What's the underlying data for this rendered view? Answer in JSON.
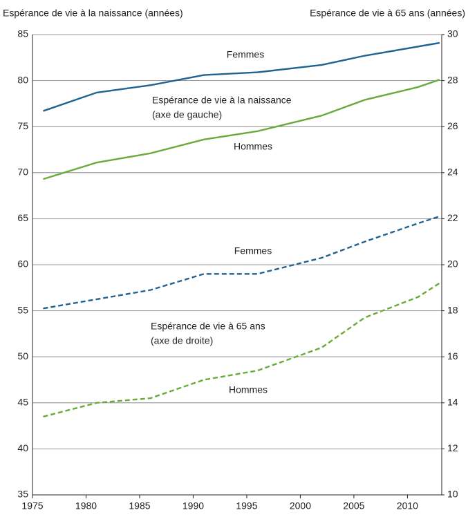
{
  "chart_data": {
    "type": "line",
    "y_label": "Espérance de vie à la naissance (années)",
    "y2_label": "Espérance de vie à 65 ans (années)",
    "xlim": [
      1975,
      2013.2
    ],
    "xticks": [
      1975,
      1980,
      1985,
      1990,
      1995,
      2000,
      2005,
      2010
    ],
    "ylim": [
      35,
      85
    ],
    "yticks": [
      35,
      40,
      45,
      50,
      55,
      60,
      65,
      70,
      75,
      80,
      85
    ],
    "y2lim": [
      10,
      30
    ],
    "y2ticks": [
      10,
      12,
      14,
      16,
      18,
      20,
      22,
      24,
      26,
      28,
      30
    ],
    "grid": true,
    "series": [
      {
        "name": "Femmes",
        "color": "#1f6391",
        "dashed": false,
        "x": [
          1976,
          1981,
          1986,
          1991,
          1996,
          2002,
          2006,
          2013
        ],
        "values": [
          76.7,
          78.7,
          79.5,
          80.6,
          80.9,
          81.7,
          82.7,
          84.1
        ]
      },
      {
        "name": "Hommes",
        "color": "#6aaa3a",
        "dashed": false,
        "x": [
          1976,
          1981,
          1986,
          1991,
          1996,
          2002,
          2006,
          2011,
          2013
        ],
        "values": [
          69.3,
          71.1,
          72.1,
          73.6,
          74.5,
          76.2,
          77.9,
          79.3,
          80.1
        ]
      },
      {
        "name": "Femmes",
        "color": "#1f6391",
        "dashed": true,
        "axis": "y2",
        "x": [
          1976,
          1981,
          1986,
          1991,
          1996,
          2002,
          2006,
          2011,
          2013
        ],
        "values": [
          18.1,
          18.5,
          18.9,
          19.6,
          19.6,
          20.3,
          21.0,
          21.8,
          22.1
        ]
      },
      {
        "name": "Hommes",
        "color": "#6aaa3a",
        "dashed": true,
        "axis": "y2",
        "x": [
          1976,
          1981,
          1986,
          1991,
          1996,
          2002,
          2006,
          2011,
          2013
        ],
        "values": [
          13.4,
          14.0,
          14.2,
          15.0,
          15.4,
          16.4,
          17.7,
          18.6,
          19.2
        ]
      }
    ],
    "annotations": [
      "Espérance de vie à la naissance",
      "(axe de gauche)",
      "Espérance de vie à 65 ans",
      "(axe de droite)"
    ]
  }
}
